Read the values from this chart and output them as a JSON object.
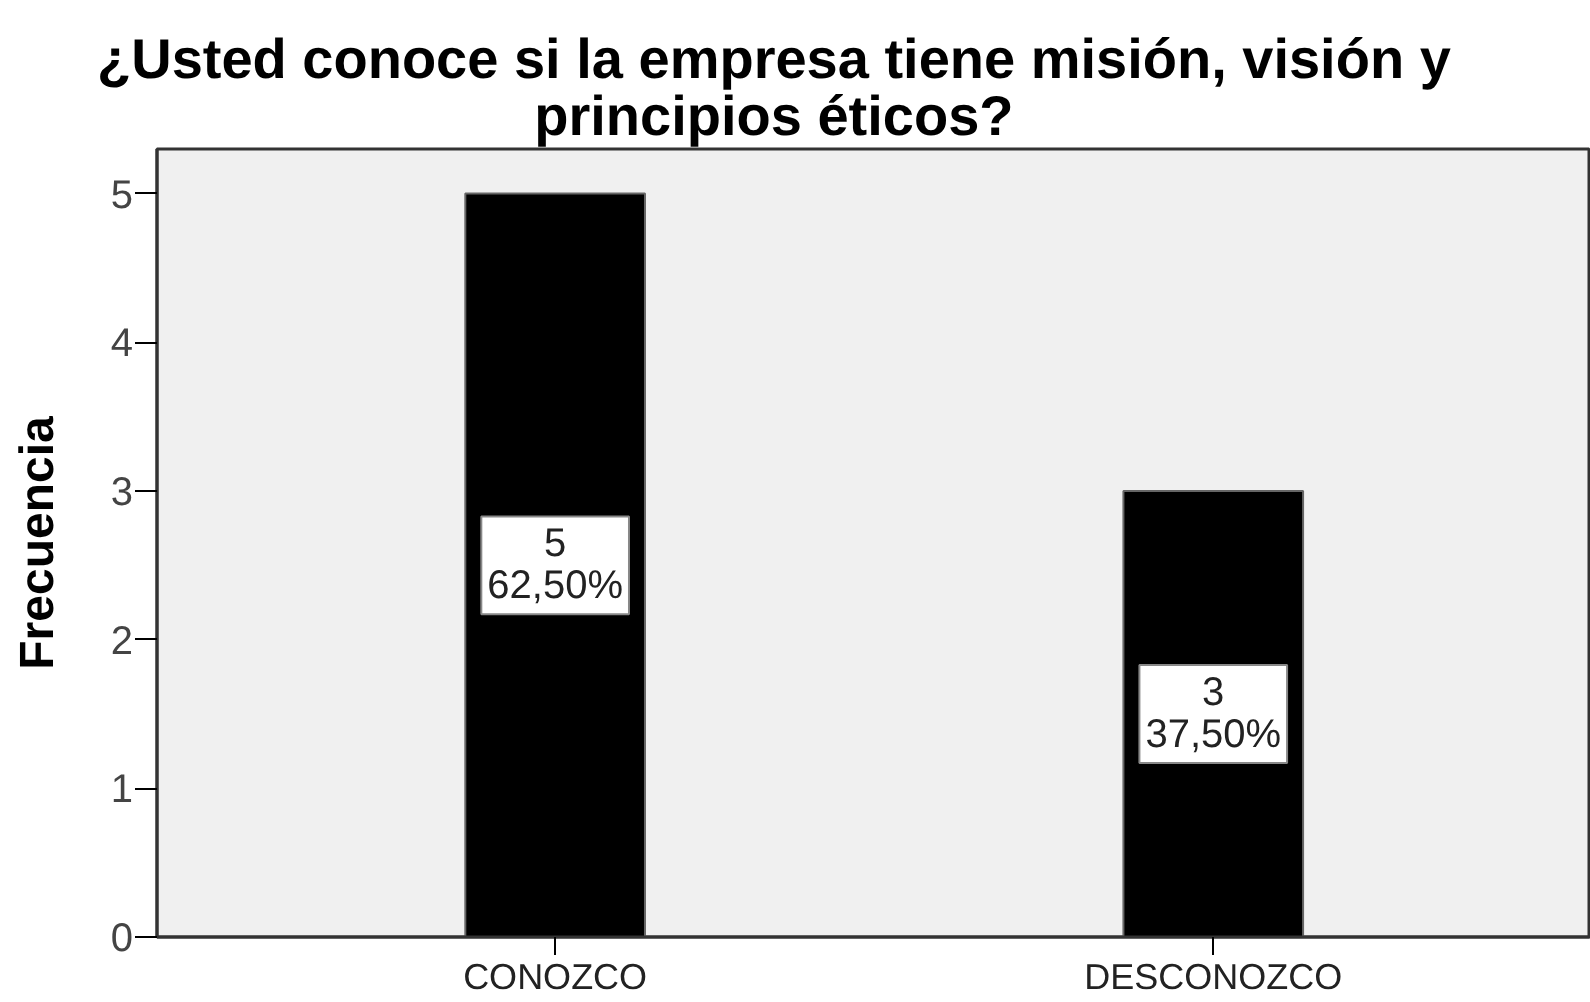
{
  "chart_data": {
    "type": "bar",
    "title": "¿Usted conoce si la empresa tiene misión, visión y\nprincipios éticos?",
    "ylabel": "Frecuencia",
    "categories": [
      "CONOZCO",
      "DESCONOZCO"
    ],
    "values": [
      5,
      3
    ],
    "color": "#000000",
    "value_labels": [
      "5\n62,50%",
      "3\n37,50%"
    ],
    "ylim": [
      0,
      5.3
    ],
    "yticks": [
      0,
      1,
      2,
      3,
      4,
      5
    ]
  }
}
